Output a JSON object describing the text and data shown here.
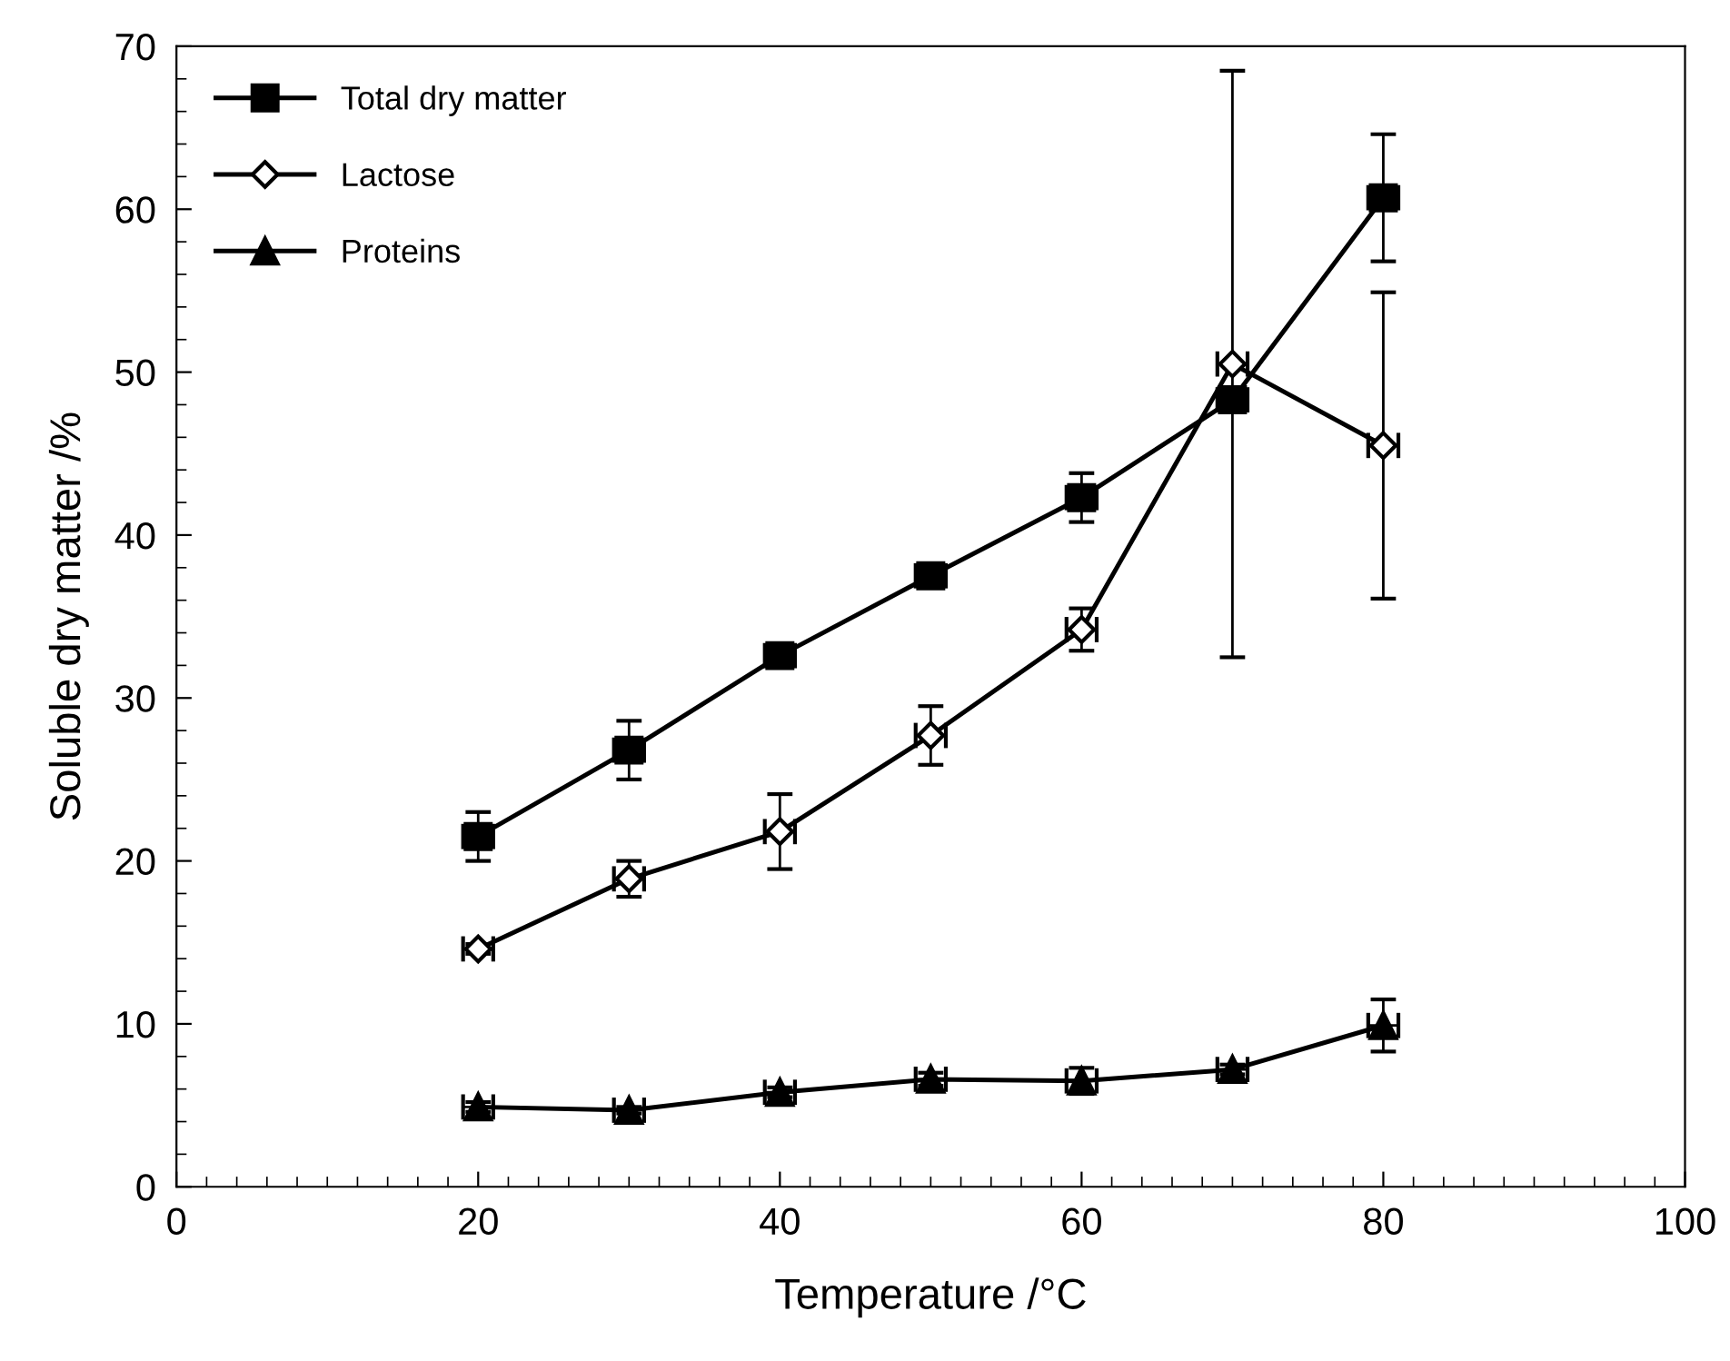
{
  "chart_data": {
    "type": "line",
    "xlabel": "Temperature /°C",
    "ylabel": "Soluble dry matter /%",
    "x": [
      20,
      30,
      40,
      50,
      60,
      70,
      80
    ],
    "series": [
      {
        "name": "Total dry matter",
        "color": "#000000",
        "marker": "square",
        "values": [
          21.5,
          26.8,
          32.6,
          37.5,
          42.3,
          48.3,
          60.7
        ],
        "errors": [
          1.5,
          1.8,
          0.5,
          0.7,
          1.5,
          0.5,
          3.9
        ],
        "xerrors": [
          1,
          1,
          1,
          1,
          1,
          1,
          1
        ]
      },
      {
        "name": "Lactose",
        "color": "#000000",
        "marker": "diamond",
        "values": [
          14.6,
          18.9,
          21.8,
          27.7,
          34.2,
          50.5,
          45.5
        ],
        "errors": [
          0.3,
          1.1,
          2.3,
          1.8,
          1.3,
          18,
          9.4
        ],
        "xerrors": [
          1,
          1,
          1,
          1,
          1,
          1,
          1
        ]
      },
      {
        "name": "Proteins",
        "color": "#000000",
        "marker": "triangle",
        "values": [
          4.9,
          4.7,
          5.8,
          6.6,
          6.5,
          7.2,
          9.9
        ],
        "errors": [
          0.3,
          0.2,
          0.3,
          0.4,
          0.8,
          0.3,
          1.6
        ],
        "xerrors": [
          1,
          1,
          1,
          1,
          1,
          1,
          1
        ]
      }
    ],
    "xlim": [
      0,
      100
    ],
    "xticks": [
      0,
      20,
      40,
      60,
      80,
      100
    ],
    "ylim": [
      0,
      70
    ],
    "yticks": [
      0,
      10,
      20,
      30,
      40,
      50,
      60,
      70
    ],
    "grid": false,
    "legend": "top left",
    "line_style": "solid"
  }
}
